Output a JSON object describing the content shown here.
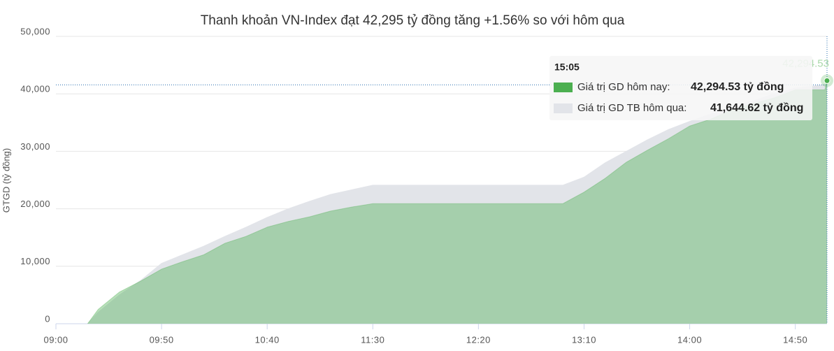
{
  "chart_data": {
    "type": "area",
    "title": "Thanh khoản VN-Index đạt 42,295 tỷ đồng tăng +1.56% so với hôm qua",
    "y_label": "GTGD (tỷ đồng)",
    "x": [
      "09:15",
      "09:20",
      "09:30",
      "09:40",
      "09:50",
      "10:00",
      "10:10",
      "10:20",
      "10:30",
      "10:40",
      "10:50",
      "11:00",
      "11:10",
      "11:20",
      "11:30",
      "13:00",
      "13:10",
      "13:20",
      "13:30",
      "13:40",
      "13:50",
      "14:00",
      "14:10",
      "14:20",
      "14:30",
      "14:40",
      "14:50",
      "15:04",
      "15:05"
    ],
    "series": [
      {
        "name": "Giá trị GD TB hôm qua",
        "color": "#e2e4e9",
        "values": [
          0,
          2000,
          5000,
          7500,
          10500,
          12000,
          13500,
          15200,
          16800,
          18500,
          20000,
          21300,
          22500,
          23300,
          24100,
          24100,
          25500,
          28000,
          30000,
          32000,
          33800,
          35200,
          36500,
          37600,
          38800,
          40000,
          41000,
          41600,
          41644.62
        ]
      },
      {
        "name": "Giá trị GD hôm nay",
        "color": "#4caf50",
        "values": [
          0,
          2500,
          5500,
          7400,
          9500,
          10800,
          12000,
          14000,
          15200,
          16800,
          17800,
          18600,
          19600,
          20300,
          20900,
          20900,
          22900,
          25300,
          28100,
          30200,
          32200,
          34400,
          35600,
          37200,
          38300,
          39300,
          40700,
          40700,
          42294.53
        ]
      }
    ],
    "xticks": [
      "09:00",
      "09:50",
      "10:40",
      "11:30",
      "12:20",
      "13:10",
      "14:00",
      "14:50"
    ],
    "xlim": [
      "09:00",
      "15:05"
    ],
    "ylim": [
      0,
      50000
    ],
    "yticks": [
      0,
      {
        "value": 10000,
        "label": "10,000"
      },
      {
        "value": 20000,
        "label": "20,000"
      },
      {
        "value": 30000,
        "label": "30,000"
      },
      {
        "value": 40000,
        "label": "40,000"
      },
      {
        "value": 50000,
        "label": "50,000"
      }
    ],
    "grid": true,
    "point_label": "42,294.53",
    "tooltip": {
      "time": "15:05",
      "items": [
        {
          "label": "Giá trị GD hôm nay:",
          "value": "42,294.53 tỷ đồng"
        },
        {
          "label": "Giá trị GD TB hôm qua:",
          "value": "41,644.62 tỷ đồng"
        }
      ]
    }
  }
}
